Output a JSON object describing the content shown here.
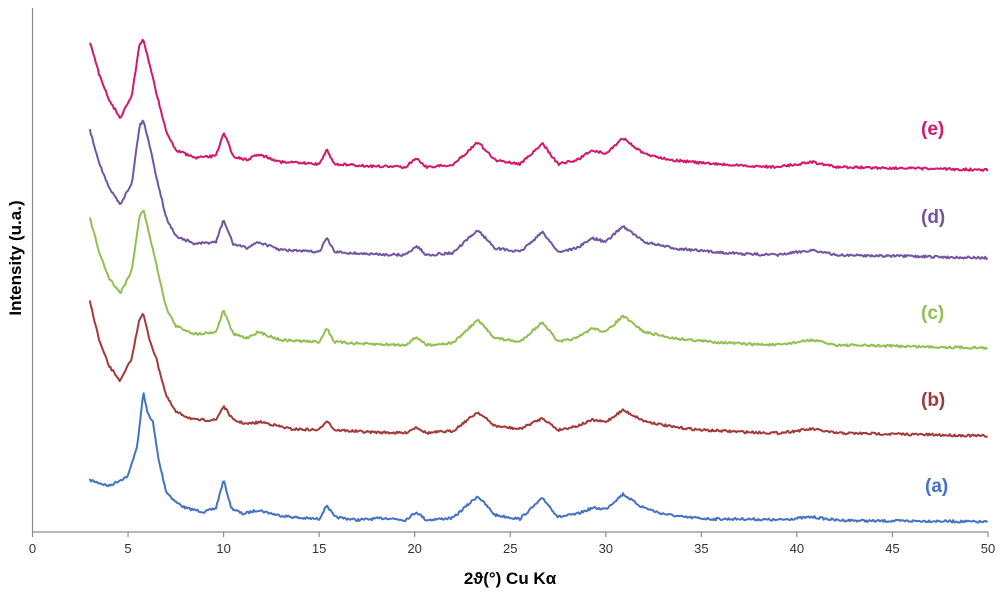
{
  "chart_data": {
    "type": "line",
    "title": "",
    "xlabel": "2ϑ(°) Cu Kα",
    "ylabel": "Intensity (u.a.)",
    "xlim": [
      0,
      50
    ],
    "x_ticks": [
      0,
      5,
      10,
      15,
      20,
      25,
      30,
      35,
      40,
      45,
      50
    ],
    "y_ticks_shown": false,
    "grid": false,
    "legend": "inline labels at right end of each curve",
    "series": [
      {
        "name": "(a)",
        "color": "#4472C4",
        "x": [
          3.0,
          4.0,
          5.0,
          5.5,
          5.8,
          6.0,
          6.3,
          6.6,
          7.0,
          7.5,
          8.0,
          9.0,
          9.6,
          10.0,
          10.4,
          11.0,
          11.8,
          12.8,
          14.0,
          15.0,
          15.4,
          15.8,
          17.0,
          18.5,
          19.5,
          20.1,
          20.6,
          22.0,
          23.3,
          24.2,
          25.5,
          26.7,
          27.5,
          28.5,
          29.3,
          30.0,
          30.9,
          31.8,
          32.8,
          34.0,
          35.5,
          37.3,
          39.0,
          40.8,
          42.0,
          44.0,
          47.0,
          50.0
        ],
        "y": [
          42,
          36,
          46,
          78,
          130,
          110,
          100,
          62,
          30,
          20,
          14,
          10,
          14,
          42,
          14,
          8,
          12,
          7,
          4,
          3,
          17,
          5,
          2,
          4,
          2,
          10,
          2,
          4,
          26,
          7,
          3,
          24,
          5,
          8,
          14,
          13,
          28,
          16,
          9,
          5,
          3,
          3,
          2,
          5,
          2,
          1,
          1,
          0
        ]
      },
      {
        "name": "(b)",
        "color": "#A33A3A",
        "x": [
          3.0,
          3.5,
          4.0,
          4.6,
          5.2,
          5.6,
          5.8,
          6.1,
          6.5,
          7.0,
          7.5,
          8.5,
          9.6,
          10.0,
          10.5,
          11.2,
          12.0,
          13.5,
          15.0,
          15.4,
          15.8,
          17.5,
          19.5,
          20.1,
          20.6,
          22.0,
          23.3,
          24.2,
          25.5,
          26.7,
          27.5,
          28.5,
          29.3,
          30.0,
          30.9,
          32.0,
          33.5,
          35.0,
          37.3,
          39.0,
          40.8,
          42.0,
          45.0,
          50.0
        ],
        "y": [
          135,
          95,
          70,
          55,
          78,
          118,
          122,
          98,
          76,
          40,
          24,
          16,
          16,
          30,
          16,
          12,
          14,
          7,
          6,
          16,
          6,
          4,
          3,
          9,
          3,
          5,
          24,
          10,
          7,
          18,
          6,
          10,
          16,
          14,
          26,
          15,
          9,
          6,
          4,
          3,
          7,
          3,
          2,
          0
        ]
      },
      {
        "name": "(c)",
        "color": "#92C050",
        "x": [
          3.0,
          3.5,
          4.0,
          4.6,
          5.2,
          5.6,
          5.8,
          6.1,
          6.5,
          7.0,
          7.5,
          8.5,
          9.6,
          10.0,
          10.5,
          11.2,
          11.8,
          13.0,
          15.0,
          15.4,
          15.8,
          17.5,
          19.5,
          20.1,
          20.6,
          22.0,
          23.3,
          24.2,
          25.5,
          26.7,
          27.5,
          28.5,
          29.3,
          30.0,
          30.9,
          32.0,
          33.5,
          35.0,
          37.3,
          39.0,
          40.8,
          42.0,
          45.0,
          50.0
        ],
        "y": [
          130,
          95,
          70,
          55,
          78,
          132,
          138,
          115,
          82,
          40,
          22,
          14,
          16,
          38,
          14,
          10,
          16,
          8,
          6,
          20,
          6,
          4,
          3,
          11,
          3,
          5,
          28,
          10,
          6,
          26,
          6,
          10,
          20,
          16,
          32,
          16,
          10,
          7,
          4,
          3,
          8,
          3,
          2,
          0
        ]
      },
      {
        "name": "(d)",
        "color": "#7255A0",
        "x": [
          3.0,
          3.5,
          4.0,
          4.6,
          5.2,
          5.6,
          5.8,
          6.1,
          6.5,
          7.0,
          7.5,
          8.5,
          9.6,
          10.0,
          10.5,
          11.2,
          11.8,
          13.0,
          15.0,
          15.4,
          15.8,
          17.5,
          19.5,
          20.1,
          20.6,
          22.0,
          23.3,
          24.2,
          25.5,
          26.7,
          27.5,
          28.5,
          29.3,
          30.0,
          30.9,
          32.0,
          33.5,
          35.0,
          37.3,
          39.0,
          40.8,
          42.0,
          45.0,
          50.0
        ],
        "y": [
          128,
          95,
          70,
          54,
          75,
          132,
          138,
          115,
          80,
          40,
          22,
          14,
          16,
          38,
          14,
          10,
          16,
          8,
          6,
          20,
          6,
          4,
          3,
          12,
          3,
          5,
          28,
          10,
          6,
          26,
          6,
          10,
          20,
          16,
          32,
          16,
          10,
          7,
          4,
          3,
          8,
          3,
          2,
          0
        ]
      },
      {
        "name": "(e)",
        "color": "#D3176C",
        "x": [
          3.0,
          3.5,
          4.0,
          4.6,
          5.2,
          5.6,
          5.8,
          6.1,
          6.5,
          7.0,
          7.5,
          8.5,
          9.6,
          10.0,
          10.5,
          11.2,
          11.8,
          13.0,
          15.0,
          15.4,
          15.8,
          17.5,
          19.5,
          20.1,
          20.6,
          22.0,
          23.3,
          24.2,
          25.5,
          26.7,
          27.5,
          28.5,
          29.3,
          30.0,
          30.9,
          32.0,
          33.5,
          35.0,
          37.3,
          39.0,
          40.8,
          42.0,
          45.0,
          50.0
        ],
        "y": [
          128,
          95,
          70,
          52,
          75,
          125,
          130,
          108,
          76,
          38,
          20,
          12,
          14,
          38,
          14,
          10,
          16,
          8,
          6,
          20,
          6,
          4,
          3,
          12,
          3,
          5,
          28,
          10,
          6,
          26,
          6,
          10,
          20,
          16,
          32,
          16,
          10,
          7,
          4,
          3,
          8,
          3,
          2,
          0
        ]
      }
    ]
  }
}
